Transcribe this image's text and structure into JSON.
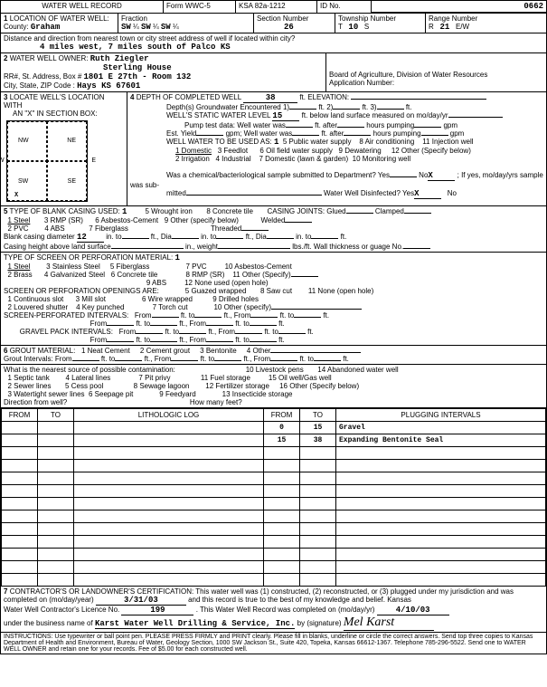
{
  "form": {
    "title": "WATER WELL RECORD",
    "form_num": "Form WWC-5",
    "ksa": "KSA 82a-1212",
    "id_label": "ID No.",
    "id_value": "0662"
  },
  "location": {
    "section_label": "LOCATION OF WATER WELL:",
    "county_label": "County:",
    "county": "Graham",
    "fraction_label": "Fraction",
    "fraction1": "SW",
    "fraction2": "SW",
    "fraction3": "SW",
    "quarter": "¼",
    "section_num_label": "Section Number",
    "section_num": "26",
    "township_label": "Township Number",
    "township_t": "T",
    "township": "10",
    "township_s": "S",
    "range_label": "Range Number",
    "range_r": "R",
    "range": "21",
    "range_ew": "E/W",
    "distance_label": "Distance and direction from nearest town or city street address of well if located within city?",
    "distance": "4 miles west, 7 miles south of Palco KS"
  },
  "owner": {
    "label": "WATER WELL OWNER:",
    "name": "Ruth Ziegler",
    "line2": "Sterling House",
    "rr_label": "RR#, St. Address, Box #",
    "address": "1801 E 27th - Room 132",
    "city_label": "City, State, ZIP Code  :",
    "city": "Hays KS 67601",
    "board": "Board of Agriculture, Division of Water Resources",
    "app_label": "Application Number:"
  },
  "locate": {
    "label": "LOCATE WELL'S LOCATION WITH",
    "label2": "AN \"X\" IN SECTION BOX:",
    "nw": "NW",
    "ne": "NE",
    "sw": "SW",
    "se": "SE",
    "w": "W",
    "e": "E",
    "n": "N",
    "s": "S",
    "x_mark": "X"
  },
  "depth": {
    "label": "DEPTH OF COMPLETED WELL",
    "value": "38",
    "elev_label": "ft. ELEVATION:",
    "groundwater_label": "Depth(s) Groundwater Encountered",
    "gw1": "1)",
    "gw2": "2)",
    "gw3": "3)",
    "static_label": "WELL'S STATIC WATER LEVEL",
    "static": "15",
    "static_unit": "ft. below land surface measured on mo/day/yr",
    "pump_test": "Pump test data:  Well water was",
    "pump_after": "ft. after",
    "pump_hours": "hours pumping",
    "pump_gpm": "gpm",
    "est_yield": "Est. Yield",
    "ey_gpm": "gpm;  Well water was",
    "ey_after": "ft. after",
    "ey_hours": "hours pumping",
    "ey_gpm2": "gpm",
    "use_label": "WELL WATER TO BE USED AS:",
    "use_val": "1",
    "use1": "1 Domestic",
    "use2": "2 Irrigation",
    "use3": "3 Feedlot",
    "use4": "4 Industrial",
    "use5": "5 Public water supply",
    "use6": "6 Oil field water supply",
    "use7": "7 Domestic (lawn & garden)",
    "use8": "8 Air conditioning",
    "use9": "9 Dewatering",
    "use10": "10 Monitoring well",
    "use11": "11 Injection well",
    "use12": "12 Other (Specify below)",
    "chem_label": "Was a chemical/bacteriological sample submitted to Department?  Yes",
    "chem_no": "No",
    "chem_x": "X",
    "chem_if": "; If yes, mo/day/yrs sample was sub-",
    "mitted": "mitted",
    "disinfect": "Water Well Disinfected?  Yes",
    "dis_x": "X",
    "dis_no": "No"
  },
  "casing": {
    "label": "TYPE OF BLANK CASING USED:",
    "val": "1",
    "c1": "1 Steel",
    "c2": "2 PVC",
    "c3": "3 RMP (SR)",
    "c4": "4 ABS",
    "c5": "5 Wrought iron",
    "c6": "6 Asbestos-Cement",
    "c7": "7 Fiberglass",
    "c8": "8 Concrete tile",
    "c9": "9 Other (specify below)",
    "joints": "CASING JOINTS: Glued",
    "clamped": "Clamped",
    "welded": "Welded",
    "threaded": "Threaded",
    "diam_label": "Blank casing diameter",
    "diam": "12",
    "diam_in": "in. to",
    "diam_ft": "ft., Dia",
    "diam_in2": "in. to",
    "diam_ft2": "ft., Dia",
    "diam_in3": "in. to",
    "diam_ft3": "ft.",
    "height_label": "Casing height above land surface",
    "height_in": "in., weight",
    "height_lbs": "lbs./ft. Wall thickness or guage No."
  },
  "screen": {
    "label": "TYPE OF SCREEN OR PERFORATION MATERIAL:",
    "val": "1",
    "s1": "1 Steel",
    "s2": "2 Brass",
    "s3": "3 Stainless Steel",
    "s4": "4 Galvanized Steel",
    "s5": "5 Fiberglass",
    "s6": "6 Concrete tile",
    "s7": "7 PVC",
    "s8": "8 RMP (SR)",
    "s9": "9 ABS",
    "s10": "10 Asbestos-Cement",
    "s11": "11 Other (Specify)",
    "s12": "12 None used (open hole)",
    "open_label": "SCREEN OR PERFORATION OPENINGS ARE:",
    "o1": "1 Continuous slot",
    "o2": "2 Louvered shutter",
    "o3": "3 Mill slot",
    "o4": "4 Key punched",
    "o5": "5 Guazed wrapped",
    "o6": "6 Wire wrapped",
    "o7": "7 Torch cut",
    "o8": "8 Saw cut",
    "o9": "9 Drilled holes",
    "o10": "10 Other (specify)",
    "o11": "11 None (open hole)",
    "perf_label": "SCREEN-PERFORATED INTERVALS:",
    "from": "From",
    "to": "ft. to",
    "ft": "ft., From",
    "gravel_label": "GRAVEL PACK INTERVALS:"
  },
  "grout": {
    "label": "GROUT MATERIAL:",
    "g1": "1 Neat Cement",
    "g2": "2 Cement grout",
    "g3": "3 Bentonite",
    "g4": "4 Other",
    "interval_label": "Grout Intervals:    From",
    "to": "ft. to",
    "ft": "ft., From",
    "contam_label": "What is the nearest source of possible contamination:",
    "c1": "1 Septic tank",
    "c2": "2 Sewer lines",
    "c3": "3 Watertight sewer lines",
    "c4": "4 Lateral lines",
    "c5": "5 Cess pool",
    "c6": "6 Seepage pit",
    "c7": "7 Pit privy",
    "c8": "8 Sewage lagoon",
    "c9": "9 Feedyard",
    "c10": "10 Livestock pens",
    "c11": "11 Fuel storage",
    "c12": "12 Fertilizer storage",
    "c13": "13 Insecticide storage",
    "c14": "14 Abandoned water well",
    "c15": "15 Oil well/Gas well",
    "c16": "16 Other (Specify below)",
    "dir_label": "Direction from well?",
    "how_many": "How many feet?"
  },
  "log_table": {
    "headers": [
      "FROM",
      "TO",
      "LITHOLOGIC LOG",
      "FROM",
      "TO",
      "PLUGGING INTERVALS"
    ],
    "rows": [
      {
        "from2": "0",
        "to2": "15",
        "plug": "Gravel"
      },
      {
        "from2": "15",
        "to2": "38",
        "plug": "Expanding Bentonite Seal"
      },
      {},
      {},
      {},
      {},
      {},
      {},
      {},
      {},
      {},
      {},
      {}
    ]
  },
  "cert": {
    "label": "CONTRACTOR'S OR LANDOWNER'S CERTIFICATION:",
    "text1": "This water well was (1) constructed, (2) reconstructed, or (3) plugged under my jurisdiction and was",
    "completed": "completed on (mo/day/year)",
    "date1": "3/31/03",
    "text2": "and this record is true to the best of my knowledge and belief. Kansas",
    "lic_label": "Water Well Contractor's Licence No.",
    "lic": "199",
    "text3": ". This Water Well Record was completed on (mo/day/yr)",
    "date2": "4/10/03",
    "under": "under the business name of",
    "business": "Karst Water Well Drilling & Service, Inc.",
    "by_sig": "by (signature)",
    "signature": "Mel Karst"
  },
  "footer": {
    "instructions": "INSTRUCTIONS: Use typewriter or ball point pen. PLEASE PRESS FIRMLY and PRINT clearly. Please fill in blanks, underline or circle the correct answers. Send top three copies to Kansas Department of Health and Environment, Bureau of Water, Geology Section, 1000 SW Jackson St., Suite 420, Topeka, Kansas 66612-1367. Telephone 785-296-5522. Send one to WATER WELL OWNER and retain one for your records. Fee of $5.00 for each constructed well."
  }
}
